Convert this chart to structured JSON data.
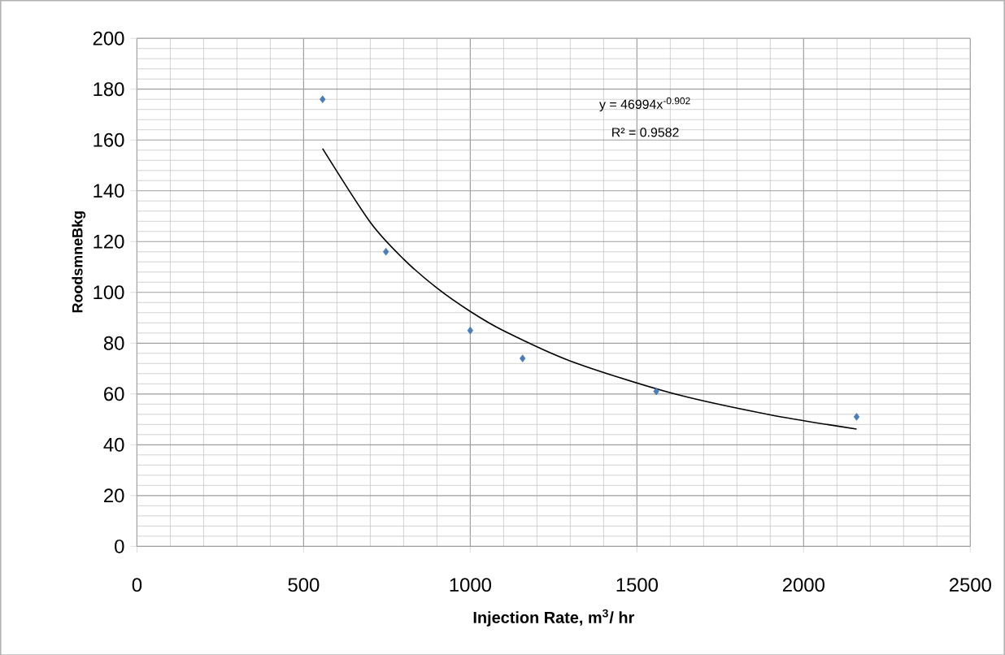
{
  "chart_data": {
    "type": "scatter",
    "xlabel": "Injection Rate, m$^{3}$/ hr",
    "ylabel": "RoodsmneBkg",
    "series": [
      {
        "color": "#4a7ebb",
        "marker": "diamond",
        "x": [
          557,
          747,
          1000,
          1157,
          1558,
          2159
        ],
        "values": [
          176,
          116,
          85,
          74,
          61,
          51
        ]
      },
      {
        "type": "line",
        "color": "#000000",
        "marker": "none",
        "x": [
          557,
          700,
          800,
          900,
          1000,
          1100,
          1300,
          1600,
          1900,
          2159
        ],
        "values": [
          156.6,
          127.6,
          113.1,
          101.7,
          92.5,
          84.9,
          73.0,
          60.5,
          51.8,
          46.2
        ]
      }
    ],
    "annotations": [
      "y = 46994x$^{-0.902}$",
      "R² = 0.9582"
    ],
    "xlim": [
      0,
      2500
    ],
    "ylim": [
      0,
      200
    ],
    "xticks": [
      0,
      500,
      1000,
      1500,
      2000,
      2500
    ],
    "yticks": [
      0,
      20,
      40,
      60,
      80,
      100,
      120,
      140,
      160,
      180,
      200
    ],
    "grid": true
  }
}
